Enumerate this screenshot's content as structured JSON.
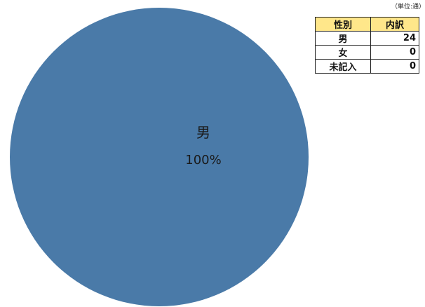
{
  "unit_note": "（単位:通）",
  "table": {
    "headers": [
      "性別",
      "内訳"
    ],
    "rows": [
      {
        "label": "男",
        "value": "24"
      },
      {
        "label": "女",
        "value": "0"
      },
      {
        "label": "未記入",
        "value": "0"
      }
    ]
  },
  "chart_data": {
    "type": "pie",
    "slices": [
      {
        "label": "男",
        "value": 24,
        "percent_label": "100%",
        "color": "#4a7aa8"
      },
      {
        "label": "女",
        "value": 0,
        "percent_label": "0%",
        "color": "#c0504d"
      },
      {
        "label": "未記入",
        "value": 0,
        "percent_label": "0%",
        "color": "#9bbb59"
      }
    ],
    "legend": "table, top-right"
  }
}
